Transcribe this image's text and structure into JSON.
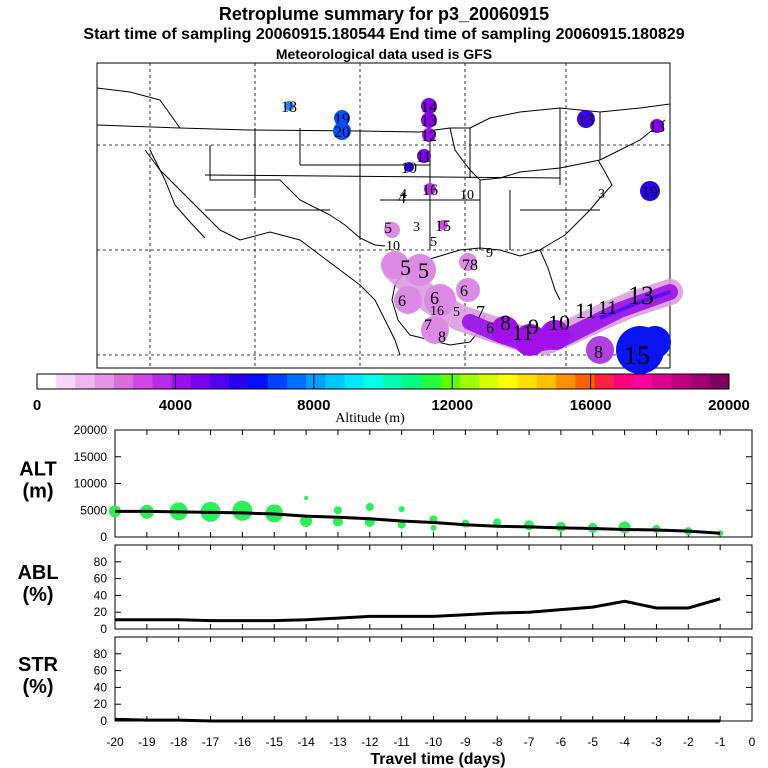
{
  "header": {
    "title": "Retroplume summary for p3_20060915",
    "sampling_times": "Start time of sampling 20060915.180544     End time of sampling 20060915.180829",
    "met": "Meteorological data used is GFS"
  },
  "colorbar": {
    "title": "Altitude (m)",
    "ticks": [
      "0",
      "4000",
      "8000",
      "12000",
      "16000",
      "20000"
    ],
    "colors": [
      "#ffffff",
      "#f7d6f7",
      "#efb6ef",
      "#e596e5",
      "#dc6edc",
      "#cf48e6",
      "#b82ce8",
      "#9a10ec",
      "#7a00f0",
      "#5000f0",
      "#2a00f0",
      "#0010ff",
      "#0040ff",
      "#0070ff",
      "#00a0ff",
      "#00c8ff",
      "#00e8ff",
      "#00ffe6",
      "#00ffb4",
      "#00ff80",
      "#20ff40",
      "#60ff00",
      "#a0ff00",
      "#d8ff00",
      "#ffff00",
      "#ffe000",
      "#ffc000",
      "#ff9000",
      "#ff6000",
      "#ff2040",
      "#ff0080",
      "#ff00a0",
      "#e00090",
      "#c00080",
      "#a00070",
      "#800060"
    ]
  },
  "map_markers": [
    {
      "label": "18",
      "color": "#1a8cff"
    },
    {
      "label": "19",
      "color": "#0050ff"
    },
    {
      "label": "20",
      "color": "#0050ff"
    },
    {
      "label": "14",
      "color": "#8a00f0"
    },
    {
      "label": "13",
      "color": "#8a00f0"
    },
    {
      "label": "12",
      "color": "#9a10ec"
    },
    {
      "label": "11",
      "color": "#7a00f0"
    },
    {
      "label": "10",
      "color": "#2a00f0"
    },
    {
      "label": "16",
      "color": "#b82ce8"
    },
    {
      "label": "4",
      "color": "#dc6edc"
    },
    {
      "label": "15",
      "color": "#cf48e6"
    },
    {
      "label": "13",
      "color": "#4000f0"
    },
    {
      "label": "13",
      "color": "#8a00f0"
    },
    {
      "label": "19",
      "color": "#2a00f0"
    }
  ],
  "chart_data": [
    {
      "type": "scatter",
      "name": "ALT",
      "ylabel": "ALT\n(m)",
      "ylim": [
        0,
        20000
      ],
      "yticks": [
        "0",
        "5000",
        "10000",
        "15000",
        "20000"
      ],
      "x": [
        -20,
        -19,
        -18,
        -17,
        -16,
        -15,
        -14,
        -13,
        -12,
        -11,
        -10,
        -9,
        -8,
        -7,
        -6,
        -5,
        -4,
        -3,
        -2,
        -1
      ],
      "median_line": [
        4800,
        4800,
        4700,
        4600,
        4500,
        4300,
        3900,
        3700,
        3400,
        3000,
        2700,
        2300,
        2000,
        1900,
        1700,
        1600,
        1400,
        1300,
        1100,
        700
      ],
      "points": [
        {
          "x": -20,
          "y": 4800,
          "r": 6
        },
        {
          "x": -19,
          "y": 4700,
          "r": 7
        },
        {
          "x": -18,
          "y": 4800,
          "r": 9
        },
        {
          "x": -17,
          "y": 4700,
          "r": 10
        },
        {
          "x": -16,
          "y": 4900,
          "r": 10
        },
        {
          "x": -15,
          "y": 4400,
          "r": 9
        },
        {
          "x": -14,
          "y": 3000,
          "r": 6
        },
        {
          "x": -14,
          "y": 7300,
          "r": 2
        },
        {
          "x": -13,
          "y": 2900,
          "r": 5
        },
        {
          "x": -13,
          "y": 5000,
          "r": 4
        },
        {
          "x": -12,
          "y": 5600,
          "r": 4
        },
        {
          "x": -12,
          "y": 2800,
          "r": 5
        },
        {
          "x": -11,
          "y": 5200,
          "r": 3
        },
        {
          "x": -11,
          "y": 2300,
          "r": 4
        },
        {
          "x": -10,
          "y": 3300,
          "r": 4
        },
        {
          "x": -10,
          "y": 1700,
          "r": 3
        },
        {
          "x": -9,
          "y": 2500,
          "r": 4
        },
        {
          "x": -8,
          "y": 2700,
          "r": 4
        },
        {
          "x": -7,
          "y": 2200,
          "r": 5
        },
        {
          "x": -6,
          "y": 1900,
          "r": 5
        },
        {
          "x": -5,
          "y": 1700,
          "r": 5
        },
        {
          "x": -4,
          "y": 1800,
          "r": 6
        },
        {
          "x": -3,
          "y": 1500,
          "r": 4
        },
        {
          "x": -2,
          "y": 1100,
          "r": 4
        },
        {
          "x": -1,
          "y": 700,
          "r": 3
        }
      ]
    },
    {
      "type": "line",
      "name": "ABL",
      "ylabel": "ABL\n(%)",
      "ylim": [
        0,
        100
      ],
      "yticks": [
        "0",
        "20",
        "40",
        "60",
        "80"
      ],
      "x": [
        -20,
        -19,
        -18,
        -17,
        -16,
        -15,
        -14,
        -13,
        -12,
        -11,
        -10,
        -9,
        -8,
        -7,
        -6,
        -5,
        -4,
        -3,
        -2,
        -1
      ],
      "values": [
        11,
        11,
        11,
        10,
        10,
        10,
        11,
        13,
        15,
        15,
        15,
        17,
        19,
        20,
        23,
        26,
        33,
        25,
        25,
        36
      ]
    },
    {
      "type": "line",
      "name": "STR",
      "ylabel": "STR\n(%)",
      "ylim": [
        0,
        100
      ],
      "yticks": [
        "0",
        "20",
        "40",
        "60",
        "80"
      ],
      "x": [
        -20,
        -19,
        -18,
        -17,
        -16,
        -15,
        -14,
        -13,
        -12,
        -11,
        -10,
        -9,
        -8,
        -7,
        -6,
        -5,
        -4,
        -3,
        -2,
        -1
      ],
      "values": [
        2,
        1,
        1,
        0,
        0,
        0,
        0,
        0,
        0,
        0,
        0,
        0,
        0,
        0,
        0,
        0,
        0,
        0,
        0,
        0
      ],
      "xlabel": "Travel time (days)",
      "xticks": [
        "-20",
        "-19",
        "-18",
        "-17",
        "-16",
        "-15",
        "-14",
        "-13",
        "-12",
        "-11",
        "-10",
        "-9",
        "-8",
        "-7",
        "-6",
        "-5",
        "-4",
        "-3",
        "-2",
        "-1",
        "0"
      ]
    }
  ]
}
